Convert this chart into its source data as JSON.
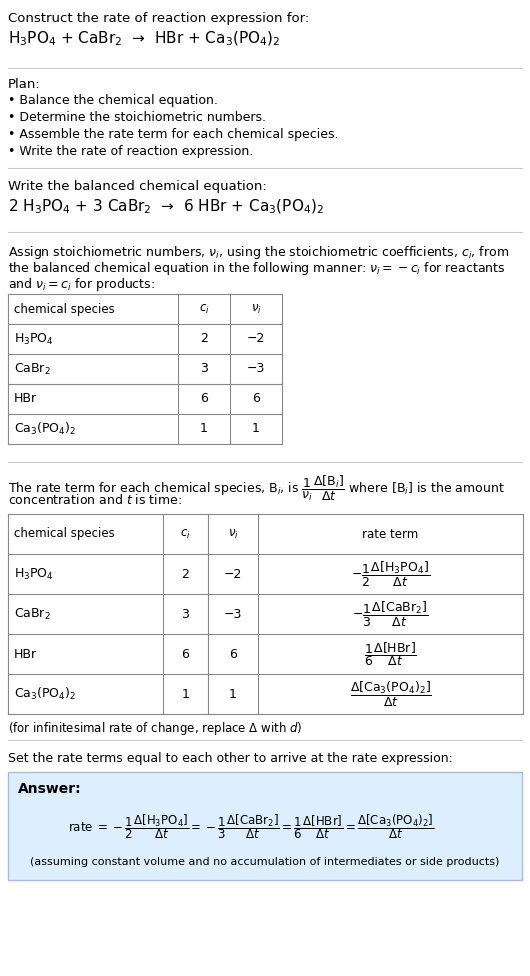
{
  "bg_color": "#ffffff",
  "text_color": "#000000",
  "table_border_color": "#aaaaaa",
  "answer_box_color": "#ddeeff",
  "answer_box_border": "#aabbcc",
  "title_text": "Construct the rate of reaction expression for:",
  "unbalanced_eq": "H$_3$PO$_4$ + CaBr$_2$  →  HBr + Ca$_3$(PO$_4$)$_2$",
  "plan_header": "Plan:",
  "plan_items": [
    "• Balance the chemical equation.",
    "• Determine the stoichiometric numbers.",
    "• Assemble the rate term for each chemical species.",
    "• Write the rate of reaction expression."
  ],
  "balanced_header": "Write the balanced chemical equation:",
  "balanced_eq": "2 H$_3$PO$_4$ + 3 CaBr$_2$  →  6 HBr + Ca$_3$(PO$_4$)$_2$",
  "assign_text1": "Assign stoichiometric numbers, $\\nu_i$, using the stoichiometric coefficients, $c_i$, from",
  "assign_text2": "the balanced chemical equation in the following manner: $\\nu_i = -c_i$ for reactants",
  "assign_text3": "and $\\nu_i = c_i$ for products:",
  "table1_headers": [
    "chemical species",
    "$c_i$",
    "$\\nu_i$"
  ],
  "table1_rows": [
    [
      "H$_3$PO$_4$",
      "2",
      "−2"
    ],
    [
      "CaBr$_2$",
      "3",
      "−3"
    ],
    [
      "HBr",
      "6",
      "6"
    ],
    [
      "Ca$_3$(PO$_4$)$_2$",
      "1",
      "1"
    ]
  ],
  "rate_text1": "The rate term for each chemical species, B$_i$, is $\\dfrac{1}{\\nu_i}\\dfrac{\\Delta[\\mathrm{B}_i]}{\\Delta t}$ where [B$_i$] is the amount",
  "rate_text2": "concentration and $t$ is time:",
  "table2_headers": [
    "chemical species",
    "$c_i$",
    "$\\nu_i$",
    "rate term"
  ],
  "table2_rows": [
    [
      "H$_3$PO$_4$",
      "2",
      "−2",
      "$-\\dfrac{1}{2}\\dfrac{\\Delta[\\mathrm{H_3PO_4}]}{\\Delta t}$"
    ],
    [
      "CaBr$_2$",
      "3",
      "−3",
      "$-\\dfrac{1}{3}\\dfrac{\\Delta[\\mathrm{CaBr_2}]}{\\Delta t}$"
    ],
    [
      "HBr",
      "6",
      "6",
      "$\\dfrac{1}{6}\\dfrac{\\Delta[\\mathrm{HBr}]}{\\Delta t}$"
    ],
    [
      "Ca$_3$(PO$_4$)$_2$",
      "1",
      "1",
      "$\\dfrac{\\Delta[\\mathrm{Ca_3(PO_4)_2}]}{\\Delta t}$"
    ]
  ],
  "infinitesimal_note": "(for infinitesimal rate of change, replace Δ with $d$)",
  "set_rate_text": "Set the rate terms equal to each other to arrive at the rate expression:",
  "answer_label": "Answer:",
  "rate_expression": "rate $= -\\dfrac{1}{2}\\dfrac{\\Delta[\\mathrm{H_3PO_4}]}{\\Delta t} = -\\dfrac{1}{3}\\dfrac{\\Delta[\\mathrm{CaBr_2}]}{\\Delta t} = \\dfrac{1}{6}\\dfrac{\\Delta[\\mathrm{HBr}]}{\\Delta t} = \\dfrac{\\Delta[\\mathrm{Ca_3(PO_4)_2}]}{\\Delta t}$",
  "assuming_note": "(assuming constant volume and no accumulation of intermediates or side products)"
}
